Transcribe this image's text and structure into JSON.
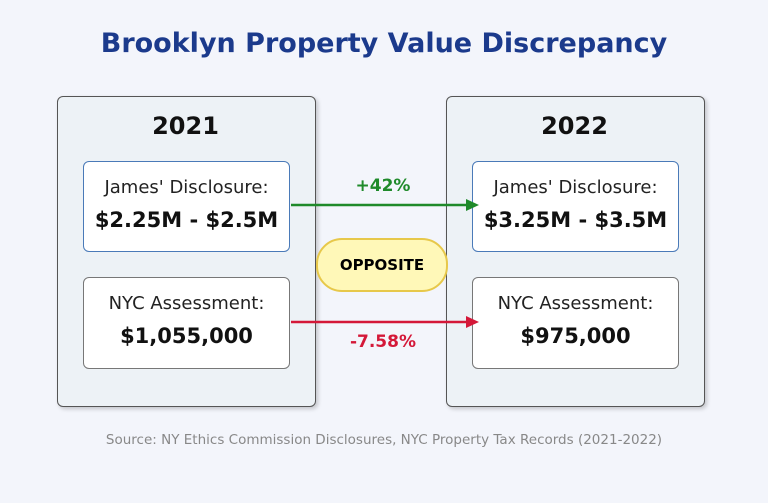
{
  "title": "Brooklyn Property Value Discrepancy",
  "panels": [
    {
      "year": "2021",
      "disclosure_label": "James' Disclosure:",
      "disclosure_value": "$2.25M - $2.5M",
      "assessment_label": "NYC Assessment:",
      "assessment_value": "$1,055,000"
    },
    {
      "year": "2022",
      "disclosure_label": "James' Disclosure:",
      "disclosure_value": "$3.25M - $3.5M",
      "assessment_label": "NYC Assessment:",
      "assessment_value": "$975,000"
    }
  ],
  "changes": {
    "disclosure": "+42%",
    "assessment": "-7.58%"
  },
  "badge": "OPPOSITE",
  "source": "Source: NY Ethics Commission Disclosures, NYC Property Tax Records (2021-2022)",
  "colors": {
    "title": "#1b3a8c",
    "up": "#1f8a2a",
    "down": "#d41838"
  }
}
